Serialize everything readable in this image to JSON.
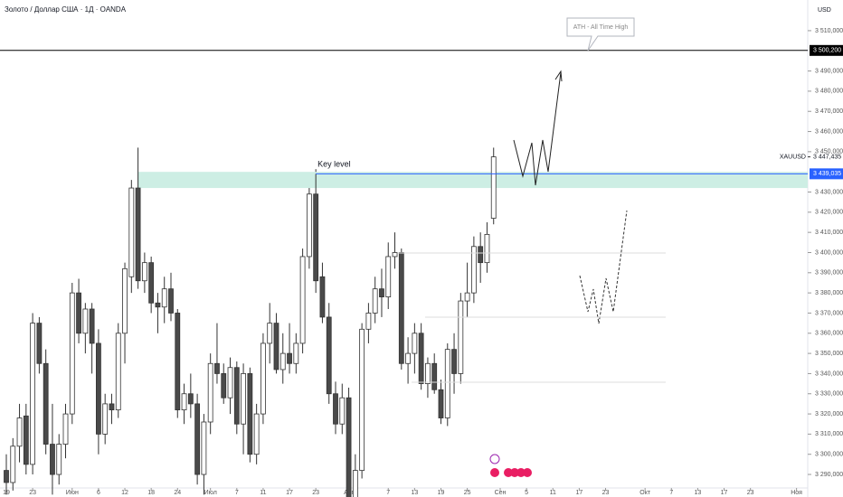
{
  "chart_data": {
    "type": "candlestick",
    "title": "Золото / Доллар США · 1Д · OANDA",
    "currency": "USD",
    "symbol": "XAUUSD",
    "last_price": {
      "value": 3447.435,
      "label": "3 447,435"
    },
    "x": [
      0,
      1,
      2,
      3,
      4,
      5,
      6,
      7,
      8,
      9,
      10,
      11,
      12,
      13,
      14,
      15,
      16,
      17,
      18,
      19,
      20,
      21,
      22,
      23,
      24,
      25,
      26,
      27,
      28,
      29,
      30,
      31,
      32,
      33,
      34,
      35,
      36,
      37,
      38,
      39,
      40,
      41,
      42,
      43,
      44,
      45,
      46,
      47,
      48,
      49,
      50,
      51,
      52,
      53,
      54,
      55,
      56,
      57,
      58,
      59,
      60,
      61,
      62,
      63,
      64,
      65,
      66,
      67,
      68,
      69,
      70,
      71,
      72,
      73,
      74
    ],
    "open": [
      3292,
      3286,
      3304,
      3319,
      3295,
      3365,
      3345,
      3305,
      3290,
      3305,
      3320,
      3380,
      3360,
      3372,
      3355,
      3310,
      3325,
      3322,
      3360,
      3388,
      3432,
      3386,
      3395,
      3375,
      3373,
      3382,
      3370,
      3322,
      3330,
      3325,
      3290,
      3316,
      3345,
      3340,
      3328,
      3343,
      3315,
      3340,
      3300,
      3320,
      3355,
      3365,
      3342,
      3350,
      3345,
      3355,
      3398,
      3429,
      3388,
      3368,
      3330,
      3315,
      3328,
      3275,
      3292,
      3362,
      3370,
      3382,
      3378,
      3398,
      3400,
      3345,
      3350,
      3360,
      3335,
      3345,
      3332,
      3318,
      3352,
      3340,
      3376,
      3380,
      3403,
      3395,
      3417
    ],
    "high": [
      3300,
      3308,
      3325,
      3325,
      3370,
      3368,
      3352,
      3325,
      3310,
      3325,
      3385,
      3387,
      3375,
      3375,
      3362,
      3330,
      3330,
      3365,
      3395,
      3436,
      3452,
      3400,
      3398,
      3380,
      3388,
      3390,
      3372,
      3335,
      3340,
      3330,
      3320,
      3350,
      3365,
      3345,
      3348,
      3346,
      3345,
      3343,
      3325,
      3360,
      3375,
      3370,
      3360,
      3365,
      3360,
      3402,
      3432,
      3439,
      3395,
      3375,
      3336,
      3335,
      3333,
      3300,
      3365,
      3375,
      3388,
      3392,
      3405,
      3410,
      3402,
      3358,
      3365,
      3365,
      3348,
      3350,
      3337,
      3355,
      3360,
      3380,
      3395,
      3408,
      3410,
      3415,
      3452
    ],
    "low": [
      3280,
      3282,
      3296,
      3290,
      3290,
      3340,
      3300,
      3280,
      3285,
      3298,
      3315,
      3355,
      3350,
      3340,
      3300,
      3305,
      3315,
      3318,
      3345,
      3380,
      3382,
      3380,
      3370,
      3360,
      3365,
      3366,
      3318,
      3315,
      3318,
      3285,
      3280,
      3310,
      3335,
      3325,
      3320,
      3310,
      3300,
      3296,
      3295,
      3315,
      3345,
      3340,
      3335,
      3340,
      3340,
      3350,
      3392,
      3380,
      3365,
      3325,
      3310,
      3310,
      3270,
      3268,
      3288,
      3355,
      3365,
      3368,
      3372,
      3392,
      3342,
      3335,
      3340,
      3332,
      3328,
      3330,
      3315,
      3314,
      3330,
      3335,
      3368,
      3375,
      3385,
      3390,
      3414
    ],
    "close": [
      3286,
      3304,
      3318,
      3295,
      3365,
      3345,
      3305,
      3290,
      3305,
      3320,
      3380,
      3360,
      3372,
      3355,
      3310,
      3325,
      3322,
      3360,
      3392,
      3432,
      3386,
      3395,
      3375,
      3373,
      3382,
      3370,
      3322,
      3330,
      3325,
      3290,
      3316,
      3345,
      3340,
      3328,
      3343,
      3315,
      3340,
      3300,
      3320,
      3355,
      3365,
      3342,
      3350,
      3345,
      3355,
      3398,
      3429,
      3386,
      3368,
      3330,
      3315,
      3328,
      3275,
      3292,
      3362,
      3370,
      3382,
      3378,
      3398,
      3400,
      3345,
      3350,
      3360,
      3335,
      3345,
      3332,
      3318,
      3352,
      3340,
      3376,
      3380,
      3403,
      3395,
      3409,
      3447.435
    ],
    "up_color": "#ffffff",
    "down_color": "#4a4a4a",
    "xlim": [
      -0.96,
      121.7
    ],
    "xticks": [
      {
        "value": 0,
        "label": "19"
      },
      {
        "value": 4,
        "label": "23"
      },
      {
        "value": 10,
        "label": "Июн"
      },
      {
        "value": 14,
        "label": "6"
      },
      {
        "value": 18,
        "label": "12"
      },
      {
        "value": 22,
        "label": "18"
      },
      {
        "value": 26,
        "label": "24"
      },
      {
        "value": 31,
        "label": "Июл"
      },
      {
        "value": 35,
        "label": "7"
      },
      {
        "value": 39,
        "label": "11"
      },
      {
        "value": 43,
        "label": "17"
      },
      {
        "value": 47,
        "label": "23"
      },
      {
        "value": 52,
        "label": "Авг"
      },
      {
        "value": 58,
        "label": "7"
      },
      {
        "value": 62,
        "label": "13"
      },
      {
        "value": 66,
        "label": "19"
      },
      {
        "value": 70,
        "label": "25"
      },
      {
        "value": 75,
        "label": "Сен"
      },
      {
        "value": 79,
        "label": "5"
      },
      {
        "value": 83,
        "label": "11"
      },
      {
        "value": 87,
        "label": "17"
      },
      {
        "value": 91,
        "label": "23"
      },
      {
        "value": 97,
        "label": "Окт"
      },
      {
        "value": 101,
        "label": "7"
      },
      {
        "value": 105,
        "label": "13"
      },
      {
        "value": 109,
        "label": "17"
      },
      {
        "value": 113,
        "label": "23"
      },
      {
        "value": 120,
        "label": "Ноя"
      }
    ],
    "ylim": [
      3283.3,
      3525.2
    ],
    "yticks": [
      {
        "value": 3290,
        "label": "3 290,000"
      },
      {
        "value": 3300,
        "label": "3 300,000"
      },
      {
        "value": 3310,
        "label": "3 310,000"
      },
      {
        "value": 3320,
        "label": "3 320,000"
      },
      {
        "value": 3330,
        "label": "3 330,000"
      },
      {
        "value": 3340,
        "label": "3 340,000"
      },
      {
        "value": 3350,
        "label": "3 350,000"
      },
      {
        "value": 3360,
        "label": "3 360,000"
      },
      {
        "value": 3370,
        "label": "3 370,000"
      },
      {
        "value": 3380,
        "label": "3 380,000"
      },
      {
        "value": 3390,
        "label": "3 390,000"
      },
      {
        "value": 3400,
        "label": "3 400,000"
      },
      {
        "value": 3410,
        "label": "3 410,000"
      },
      {
        "value": 3420,
        "label": "3 420,000"
      },
      {
        "value": 3430,
        "label": "3 430,000"
      },
      {
        "value": 3450,
        "label": "3 450,000"
      },
      {
        "value": 3460,
        "label": "3 460,000"
      },
      {
        "value": 3470,
        "label": "3 470,000"
      },
      {
        "value": 3480,
        "label": "3 480,000"
      },
      {
        "value": 3490,
        "label": "3 490,000"
      },
      {
        "value": 3510,
        "label": "3 510,000"
      }
    ],
    "ath_line": {
      "value": 3500.2,
      "label": "3 500,200",
      "color": "#000000",
      "note": "ATH - All Time High"
    },
    "key_line": {
      "value": 3439.035,
      "label": "3 439,035",
      "color": "#2962ff"
    },
    "key_zone": {
      "label": "Key level",
      "low": 3432,
      "high": 3440,
      "start": 20,
      "color": "#cdeee4"
    }
  }
}
